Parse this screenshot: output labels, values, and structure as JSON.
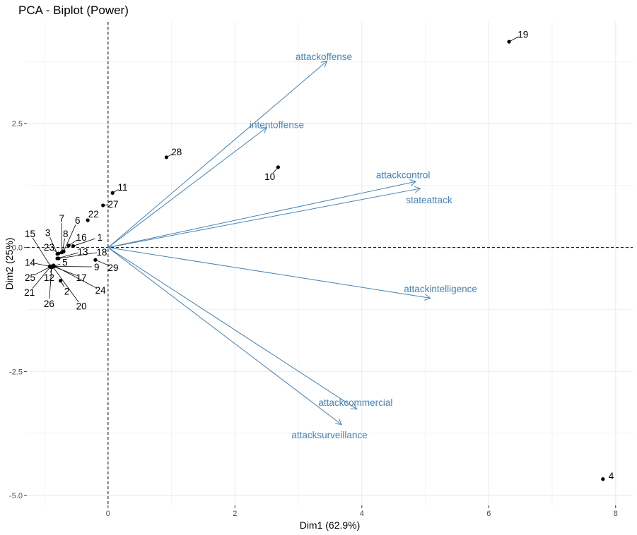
{
  "chart_data": {
    "type": "scatter",
    "title": "PCA - Biplot (Power)",
    "xlabel": "Dim1 (62.9%)",
    "ylabel": "Dim2 (25%)",
    "xlim": [
      -1.28,
      8.27
    ],
    "ylim": [
      -5.2,
      4.55
    ],
    "x_ticks": [
      {
        "value": 0,
        "label": "0"
      },
      {
        "value": 2,
        "label": "2"
      },
      {
        "value": 4,
        "label": "4"
      },
      {
        "value": 6,
        "label": "6"
      },
      {
        "value": 8,
        "label": "8"
      }
    ],
    "y_ticks": [
      {
        "value": 2.5,
        "label": "2.5"
      },
      {
        "value": 0,
        "label": "0.0"
      },
      {
        "value": -2.5,
        "label": "-2.5"
      },
      {
        "value": -5,
        "label": "-5.0"
      }
    ],
    "grid": true,
    "reference_lines": {
      "x": 0,
      "y": 0,
      "style": "dashed"
    },
    "points": [
      {
        "label": "1",
        "x": -0.55,
        "y": 0.03
      },
      {
        "label": "2",
        "x": -0.75,
        "y": -0.67
      },
      {
        "label": "3",
        "x": -0.8,
        "y": -0.13
      },
      {
        "label": "4",
        "x": 7.8,
        "y": -4.67
      },
      {
        "label": "5",
        "x": -0.85,
        "y": -0.38
      },
      {
        "label": "6",
        "x": -0.7,
        "y": -0.08
      },
      {
        "label": "7",
        "x": -0.73,
        "y": -0.1
      },
      {
        "label": "8",
        "x": -0.72,
        "y": -0.09
      },
      {
        "label": "9",
        "x": -0.86,
        "y": -0.38
      },
      {
        "label": "10",
        "x": 2.68,
        "y": 1.62
      },
      {
        "label": "11",
        "x": 0.07,
        "y": 1.1
      },
      {
        "label": "12",
        "x": -0.88,
        "y": -0.38
      },
      {
        "label": "13",
        "x": -0.8,
        "y": -0.22
      },
      {
        "label": "14",
        "x": -0.92,
        "y": -0.38
      },
      {
        "label": "15",
        "x": -0.9,
        "y": -0.39
      },
      {
        "label": "16",
        "x": -0.62,
        "y": 0.04
      },
      {
        "label": "17",
        "x": -0.87,
        "y": -0.38
      },
      {
        "label": "18",
        "x": -0.78,
        "y": -0.22
      },
      {
        "label": "19",
        "x": 6.32,
        "y": 4.15
      },
      {
        "label": "20",
        "x": -0.87,
        "y": -0.39
      },
      {
        "label": "21",
        "x": -0.91,
        "y": -0.39
      },
      {
        "label": "22",
        "x": -0.32,
        "y": 0.55
      },
      {
        "label": "23",
        "x": -0.78,
        "y": -0.12
      },
      {
        "label": "24",
        "x": -0.86,
        "y": -0.36
      },
      {
        "label": "25",
        "x": -0.9,
        "y": -0.38
      },
      {
        "label": "26",
        "x": -0.89,
        "y": -0.4
      },
      {
        "label": "27",
        "x": -0.08,
        "y": 0.85
      },
      {
        "label": "28",
        "x": 0.92,
        "y": 1.82
      },
      {
        "label": "29",
        "x": -0.2,
        "y": -0.25
      }
    ],
    "point_labels": [
      {
        "label": "1",
        "x": -0.13,
        "y": 0.21
      },
      {
        "label": "2",
        "x": -0.65,
        "y": -0.88
      },
      {
        "label": "3",
        "x": -0.95,
        "y": 0.3
      },
      {
        "label": "4",
        "x": 7.93,
        "y": -4.6
      },
      {
        "label": "5",
        "x": -0.68,
        "y": -0.3
      },
      {
        "label": "6",
        "x": -0.48,
        "y": 0.55
      },
      {
        "label": "7",
        "x": -0.73,
        "y": 0.59
      },
      {
        "label": "8",
        "x": -0.67,
        "y": 0.28
      },
      {
        "label": "9",
        "x": -0.18,
        "y": -0.39
      },
      {
        "label": "10",
        "x": 2.55,
        "y": 1.43
      },
      {
        "label": "11",
        "x": 0.23,
        "y": 1.22
      },
      {
        "label": "12",
        "x": -0.93,
        "y": -0.6
      },
      {
        "label": "13",
        "x": -0.4,
        "y": -0.08
      },
      {
        "label": "14",
        "x": -1.23,
        "y": -0.3
      },
      {
        "label": "15",
        "x": -1.23,
        "y": 0.28
      },
      {
        "label": "16",
        "x": -0.42,
        "y": 0.21
      },
      {
        "label": "17",
        "x": -0.42,
        "y": -0.6
      },
      {
        "label": "18",
        "x": -0.1,
        "y": -0.09
      },
      {
        "label": "19",
        "x": 6.54,
        "y": 4.3
      },
      {
        "label": "20",
        "x": -0.42,
        "y": -1.18
      },
      {
        "label": "21",
        "x": -1.24,
        "y": -0.9
      },
      {
        "label": "22",
        "x": -0.23,
        "y": 0.68
      },
      {
        "label": "23",
        "x": -0.93,
        "y": 0.01
      },
      {
        "label": "24",
        "x": -0.12,
        "y": -0.86
      },
      {
        "label": "25",
        "x": -1.23,
        "y": -0.6
      },
      {
        "label": "26",
        "x": -0.93,
        "y": -1.13
      },
      {
        "label": "27",
        "x": 0.08,
        "y": 0.88
      },
      {
        "label": "28",
        "x": 1.08,
        "y": 1.93
      },
      {
        "label": "29",
        "x": 0.08,
        "y": -0.4
      }
    ],
    "variables": [
      {
        "name": "attackoffense",
        "x": 3.45,
        "y": 3.76,
        "label_x": 3.4,
        "label_y": 3.85
      },
      {
        "name": "intentoffense",
        "x": 2.5,
        "y": 2.42,
        "label_x": 2.66,
        "label_y": 2.48
      },
      {
        "name": "attackcontrol",
        "x": 4.85,
        "y": 1.33,
        "label_x": 4.65,
        "label_y": 1.47
      },
      {
        "name": "stateattack",
        "x": 4.92,
        "y": 1.19,
        "label_x": 5.06,
        "label_y": 0.96
      },
      {
        "name": "attackintelligence",
        "x": 5.08,
        "y": -1.02,
        "label_x": 5.24,
        "label_y": -0.83
      },
      {
        "name": "attackcommercial",
        "x": 3.92,
        "y": -3.26,
        "label_x": 3.9,
        "label_y": -3.12
      },
      {
        "name": "attacksurveillance",
        "x": 3.68,
        "y": -3.57,
        "label_x": 3.49,
        "label_y": -3.78
      }
    ],
    "colors": {
      "points": "#000000",
      "variables": "#4682b4",
      "grid": "#ebebeb",
      "reference": "#000000"
    }
  }
}
